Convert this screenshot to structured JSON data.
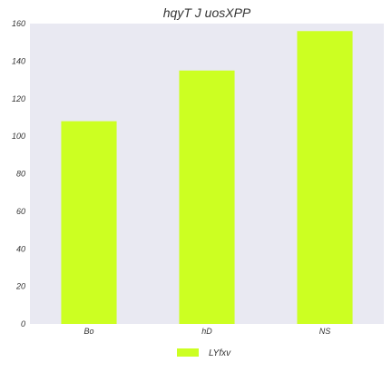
{
  "chart_data": {
    "type": "bar",
    "title": "hqyT J uosXPP",
    "xlabel": "",
    "ylabel": "",
    "categories": [
      "Bo",
      "hD",
      "NS"
    ],
    "series": [
      {
        "name": "LYfxv",
        "values": [
          108,
          135,
          156
        ]
      }
    ],
    "ylim": [
      0,
      160
    ],
    "yticks": [
      0,
      20,
      40,
      60,
      80,
      100,
      120,
      140,
      160
    ],
    "grid": false,
    "legend_position": "bottom-center",
    "colors": {
      "bar": "#ccff22",
      "plot_background": "#e9e9f2",
      "text": "#333333"
    }
  }
}
